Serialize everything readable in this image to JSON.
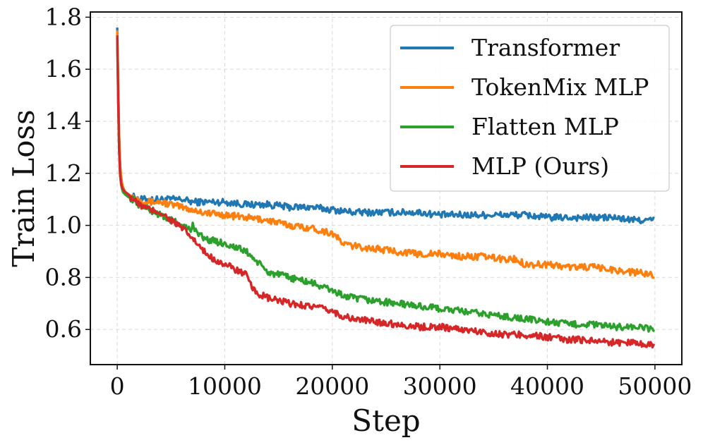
{
  "chart_data": {
    "type": "line",
    "title": "",
    "xlabel": "Step",
    "ylabel": "Train Loss",
    "xlim": [
      -2500,
      52500
    ],
    "ylim": [
      0.465,
      1.82
    ],
    "grid": true,
    "legend_position": "top-right",
    "xticks": [
      0,
      10000,
      20000,
      30000,
      40000,
      50000
    ],
    "xtick_labels": [
      "0",
      "10000",
      "20000",
      "30000",
      "40000",
      "50000"
    ],
    "yticks": [
      0.6,
      0.8,
      1.0,
      1.2,
      1.4,
      1.6,
      1.8
    ],
    "ytick_labels": [
      "0.6",
      "0.8",
      "1.0",
      "1.2",
      "1.4",
      "1.6",
      "1.8"
    ],
    "series": [
      {
        "name": "Transformer",
        "color": "#1f77b4",
        "x": [
          0,
          100,
          200,
          300,
          500,
          700,
          1000,
          1500,
          2000,
          3000,
          4000,
          5000,
          6000,
          7000,
          8000,
          10000,
          12000,
          14000,
          16000,
          18000,
          20000,
          22000,
          24000,
          26000,
          28000,
          30000,
          32000,
          34000,
          36000,
          38000,
          40000,
          42000,
          44000,
          46000,
          48000,
          50000
        ],
        "y": [
          1.76,
          1.5,
          1.3,
          1.2,
          1.15,
          1.13,
          1.12,
          1.11,
          1.1,
          1.1,
          1.1,
          1.1,
          1.1,
          1.09,
          1.09,
          1.09,
          1.08,
          1.08,
          1.07,
          1.07,
          1.06,
          1.05,
          1.05,
          1.05,
          1.05,
          1.04,
          1.04,
          1.04,
          1.04,
          1.04,
          1.03,
          1.03,
          1.03,
          1.03,
          1.02,
          1.02
        ]
      },
      {
        "name": "TokenMix MLP",
        "color": "#ff7f0e",
        "x": [
          0,
          100,
          200,
          300,
          500,
          700,
          1000,
          1500,
          2000,
          3000,
          4000,
          5000,
          6000,
          7000,
          8000,
          10000,
          12000,
          14000,
          16000,
          18000,
          20000,
          20500,
          21000,
          22000,
          24000,
          26000,
          28000,
          30000,
          32000,
          34000,
          36000,
          37000,
          38000,
          40000,
          42000,
          44000,
          46000,
          48000,
          50000
        ],
        "y": [
          1.75,
          1.5,
          1.3,
          1.2,
          1.15,
          1.13,
          1.12,
          1.11,
          1.1,
          1.09,
          1.09,
          1.08,
          1.07,
          1.06,
          1.05,
          1.04,
          1.03,
          1.02,
          1.0,
          0.99,
          0.97,
          0.95,
          0.93,
          0.92,
          0.91,
          0.9,
          0.89,
          0.89,
          0.88,
          0.88,
          0.87,
          0.87,
          0.85,
          0.85,
          0.84,
          0.84,
          0.83,
          0.82,
          0.81
        ]
      },
      {
        "name": "Flatten MLP",
        "color": "#2ca02c",
        "x": [
          0,
          100,
          200,
          300,
          500,
          700,
          1000,
          1500,
          2000,
          3000,
          4000,
          5000,
          6000,
          6900,
          7000,
          8000,
          10000,
          12000,
          13000,
          14000,
          16000,
          18000,
          20000,
          21000,
          22000,
          24000,
          26000,
          28000,
          30000,
          32000,
          34000,
          36000,
          38000,
          40000,
          42000,
          44000,
          46000,
          48000,
          50000
        ],
        "y": [
          1.72,
          1.45,
          1.25,
          1.17,
          1.13,
          1.12,
          1.11,
          1.1,
          1.08,
          1.06,
          1.04,
          1.02,
          1.0,
          0.98,
          1.0,
          0.95,
          0.93,
          0.9,
          0.86,
          0.82,
          0.8,
          0.78,
          0.75,
          0.73,
          0.72,
          0.71,
          0.7,
          0.69,
          0.68,
          0.67,
          0.66,
          0.65,
          0.64,
          0.63,
          0.62,
          0.62,
          0.61,
          0.61,
          0.6
        ]
      },
      {
        "name": "MLP (Ours)",
        "color": "#d62728",
        "x": [
          0,
          100,
          200,
          300,
          500,
          700,
          1000,
          1500,
          2000,
          3000,
          4000,
          5000,
          6000,
          7000,
          8000,
          9000,
          10000,
          11000,
          12000,
          12500,
          13000,
          14000,
          16000,
          18000,
          20000,
          21000,
          22000,
          24000,
          26000,
          28000,
          30000,
          32000,
          34000,
          36000,
          38000,
          40000,
          42000,
          44000,
          46000,
          48000,
          50000
        ],
        "y": [
          1.73,
          1.45,
          1.25,
          1.17,
          1.14,
          1.13,
          1.12,
          1.1,
          1.08,
          1.06,
          1.05,
          1.02,
          0.99,
          0.95,
          0.9,
          0.87,
          0.85,
          0.83,
          0.81,
          0.76,
          0.74,
          0.72,
          0.7,
          0.69,
          0.67,
          0.65,
          0.64,
          0.63,
          0.62,
          0.61,
          0.61,
          0.6,
          0.59,
          0.58,
          0.58,
          0.57,
          0.56,
          0.56,
          0.55,
          0.55,
          0.54
        ]
      }
    ]
  }
}
